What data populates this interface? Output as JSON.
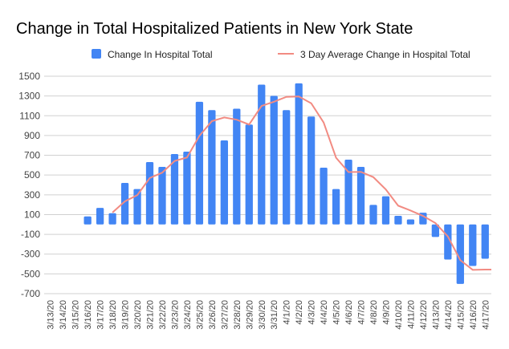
{
  "chart_data": {
    "type": "bar",
    "title": "Change in Total Hospitalized Patients in New York State",
    "xlabel": "",
    "ylabel": "",
    "ylim": [
      -700,
      1500
    ],
    "yticks": [
      1500,
      1300,
      1100,
      900,
      700,
      500,
      300,
      100,
      -100,
      -300,
      -500,
      -700
    ],
    "grid": true,
    "legend_position": "top",
    "categories": [
      "3/13/20",
      "3/14/20",
      "3/15/20",
      "3/16/20",
      "3/17/20",
      "3/18/20",
      "3/19/20",
      "3/20/20",
      "3/21/20",
      "3/22/20",
      "3/23/20",
      "3/24/20",
      "3/25/20",
      "3/26/20",
      "3/27/20",
      "3/28/20",
      "3/29/20",
      "3/30/20",
      "3/31/20",
      "4/1/20",
      "4/2/20",
      "4/3/20",
      "4/4/20",
      "4/5/20",
      "4/6/20",
      "4/7/20",
      "4/8/20",
      "4/9/20",
      "4/10/20",
      "4/11/20",
      "4/12/20",
      "4/13/20",
      "4/14/20",
      "4/15/20",
      "4/16/20",
      "4/17/20"
    ],
    "series": [
      {
        "name": "Change In Hospital Total",
        "type": "bar",
        "color": "#4285f4",
        "values": [
          null,
          null,
          null,
          81,
          168,
          114,
          420,
          358,
          631,
          583,
          713,
          737,
          1241,
          1157,
          851,
          1171,
          1011,
          1415,
          1301,
          1157,
          1428,
          1092,
          575,
          358,
          656,
          583,
          198,
          285,
          87,
          51,
          119,
          -127,
          -355,
          -602,
          -420,
          -347
        ]
      },
      {
        "name": "3 Day Average Change in Hospital Total",
        "type": "line",
        "color": "#f28b82",
        "values": [
          null,
          null,
          null,
          null,
          null,
          121,
          234,
          297,
          470,
          524,
          642,
          678,
          897,
          1045,
          1083,
          1060,
          1011,
          1199,
          1242,
          1291,
          1295,
          1226,
          1032,
          675,
          530,
          532,
          479,
          355,
          190,
          141,
          86,
          14,
          -121,
          -361,
          -459,
          -456
        ]
      }
    ]
  }
}
